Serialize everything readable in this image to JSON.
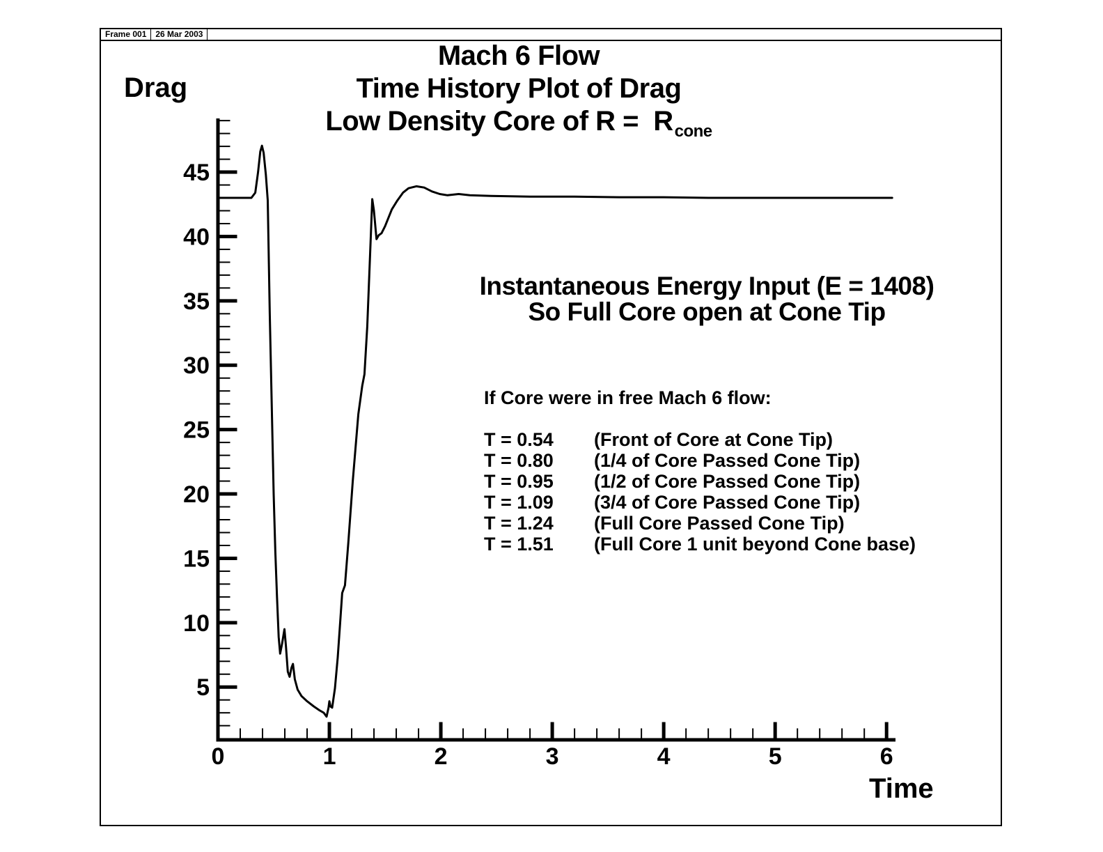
{
  "frame": {
    "label": "Frame 001",
    "date": "26 Mar 2003"
  },
  "title": {
    "line1": "Mach 6 Flow",
    "line2": "Time History Plot of Drag",
    "line3_main": "Low Density Core of R =  R",
    "line3_sub": "cone"
  },
  "axis": {
    "y_label": "Drag",
    "x_label": "Time"
  },
  "ann": {
    "energy1": "Instantaneous Energy Input (E = 1408)",
    "energy2": "So Full Core open at Cone Tip",
    "core_header": "If Core were in free Mach 6 flow:",
    "t_rows": [
      {
        "t": "T = 0.54",
        "desc": "(Front of Core at Cone Tip)"
      },
      {
        "t": "T = 0.80",
        "desc": "(1/4 of Core Passed Cone Tip)"
      },
      {
        "t": "T = 0.95",
        "desc": "(1/2 of Core Passed Cone Tip)"
      },
      {
        "t": "T = 1.09",
        "desc": "(3/4 of Core Passed Cone Tip)"
      },
      {
        "t": "T = 1.24",
        "desc": "(Full Core Passed Cone Tip)"
      },
      {
        "t": "T = 1.51",
        "desc": "(Full Core 1 unit beyond Cone base)"
      }
    ]
  },
  "colors": {
    "ink": "#000000",
    "background": "#ffffff"
  },
  "chart_data": {
    "type": "line",
    "title": "Mach 6 Flow - Time History Plot of Drag - Low Density Core of R = R_cone",
    "xlabel": "Time",
    "ylabel": "Drag",
    "xlim": [
      0,
      6.08
    ],
    "ylim": [
      0.9,
      49.17
    ],
    "x_major_ticks": [
      0,
      1,
      2,
      3,
      4,
      5,
      6
    ],
    "x_minor_step": 0.2,
    "y_major_ticks": [
      5,
      10,
      15,
      20,
      25,
      30,
      35,
      40,
      45
    ],
    "y_minor_step": 1,
    "grid": false,
    "legend": "none",
    "line_color": "#000000",
    "series": [
      {
        "name": "Drag",
        "points": [
          [
            0.0,
            43.0
          ],
          [
            0.3,
            43.0
          ],
          [
            0.335,
            43.4
          ],
          [
            0.36,
            45.0
          ],
          [
            0.38,
            46.6
          ],
          [
            0.395,
            47.05
          ],
          [
            0.41,
            46.5
          ],
          [
            0.43,
            44.8
          ],
          [
            0.447,
            42.8
          ],
          [
            0.465,
            34.0
          ],
          [
            0.48,
            28.0
          ],
          [
            0.5,
            20.0
          ],
          [
            0.515,
            15.5
          ],
          [
            0.53,
            12.0
          ],
          [
            0.545,
            8.9
          ],
          [
            0.558,
            7.6
          ],
          [
            0.576,
            8.4
          ],
          [
            0.597,
            9.5
          ],
          [
            0.61,
            8.2
          ],
          [
            0.627,
            6.2
          ],
          [
            0.643,
            5.8
          ],
          [
            0.66,
            6.5
          ],
          [
            0.673,
            6.8
          ],
          [
            0.69,
            5.6
          ],
          [
            0.715,
            4.8
          ],
          [
            0.75,
            4.3
          ],
          [
            0.8,
            3.9
          ],
          [
            0.86,
            3.5
          ],
          [
            0.91,
            3.2
          ],
          [
            0.95,
            3.0
          ],
          [
            0.975,
            2.7
          ],
          [
            0.992,
            3.4
          ],
          [
            1.0,
            3.9
          ],
          [
            1.01,
            3.5
          ],
          [
            1.025,
            3.4
          ],
          [
            1.05,
            4.9
          ],
          [
            1.075,
            7.3
          ],
          [
            1.1,
            10.4
          ],
          [
            1.115,
            12.3
          ],
          [
            1.14,
            12.9
          ],
          [
            1.17,
            16.2
          ],
          [
            1.21,
            21.0
          ],
          [
            1.26,
            26.2
          ],
          [
            1.295,
            28.4
          ],
          [
            1.315,
            29.3
          ],
          [
            1.34,
            33.0
          ],
          [
            1.365,
            38.5
          ],
          [
            1.385,
            42.9
          ],
          [
            1.4,
            42.0
          ],
          [
            1.423,
            39.8
          ],
          [
            1.443,
            40.1
          ],
          [
            1.468,
            40.25
          ],
          [
            1.5,
            40.8
          ],
          [
            1.56,
            42.1
          ],
          [
            1.61,
            42.8
          ],
          [
            1.66,
            43.4
          ],
          [
            1.71,
            43.75
          ],
          [
            1.78,
            43.9
          ],
          [
            1.85,
            43.8
          ],
          [
            1.92,
            43.5
          ],
          [
            1.99,
            43.3
          ],
          [
            2.06,
            43.2
          ],
          [
            2.16,
            43.3
          ],
          [
            2.26,
            43.2
          ],
          [
            2.45,
            43.15
          ],
          [
            2.8,
            43.1
          ],
          [
            3.2,
            43.1
          ],
          [
            3.6,
            43.05
          ],
          [
            4.0,
            43.05
          ],
          [
            4.4,
            43.0
          ],
          [
            4.8,
            43.0
          ],
          [
            5.4,
            43.0
          ],
          [
            6.05,
            43.0
          ]
        ]
      }
    ]
  }
}
